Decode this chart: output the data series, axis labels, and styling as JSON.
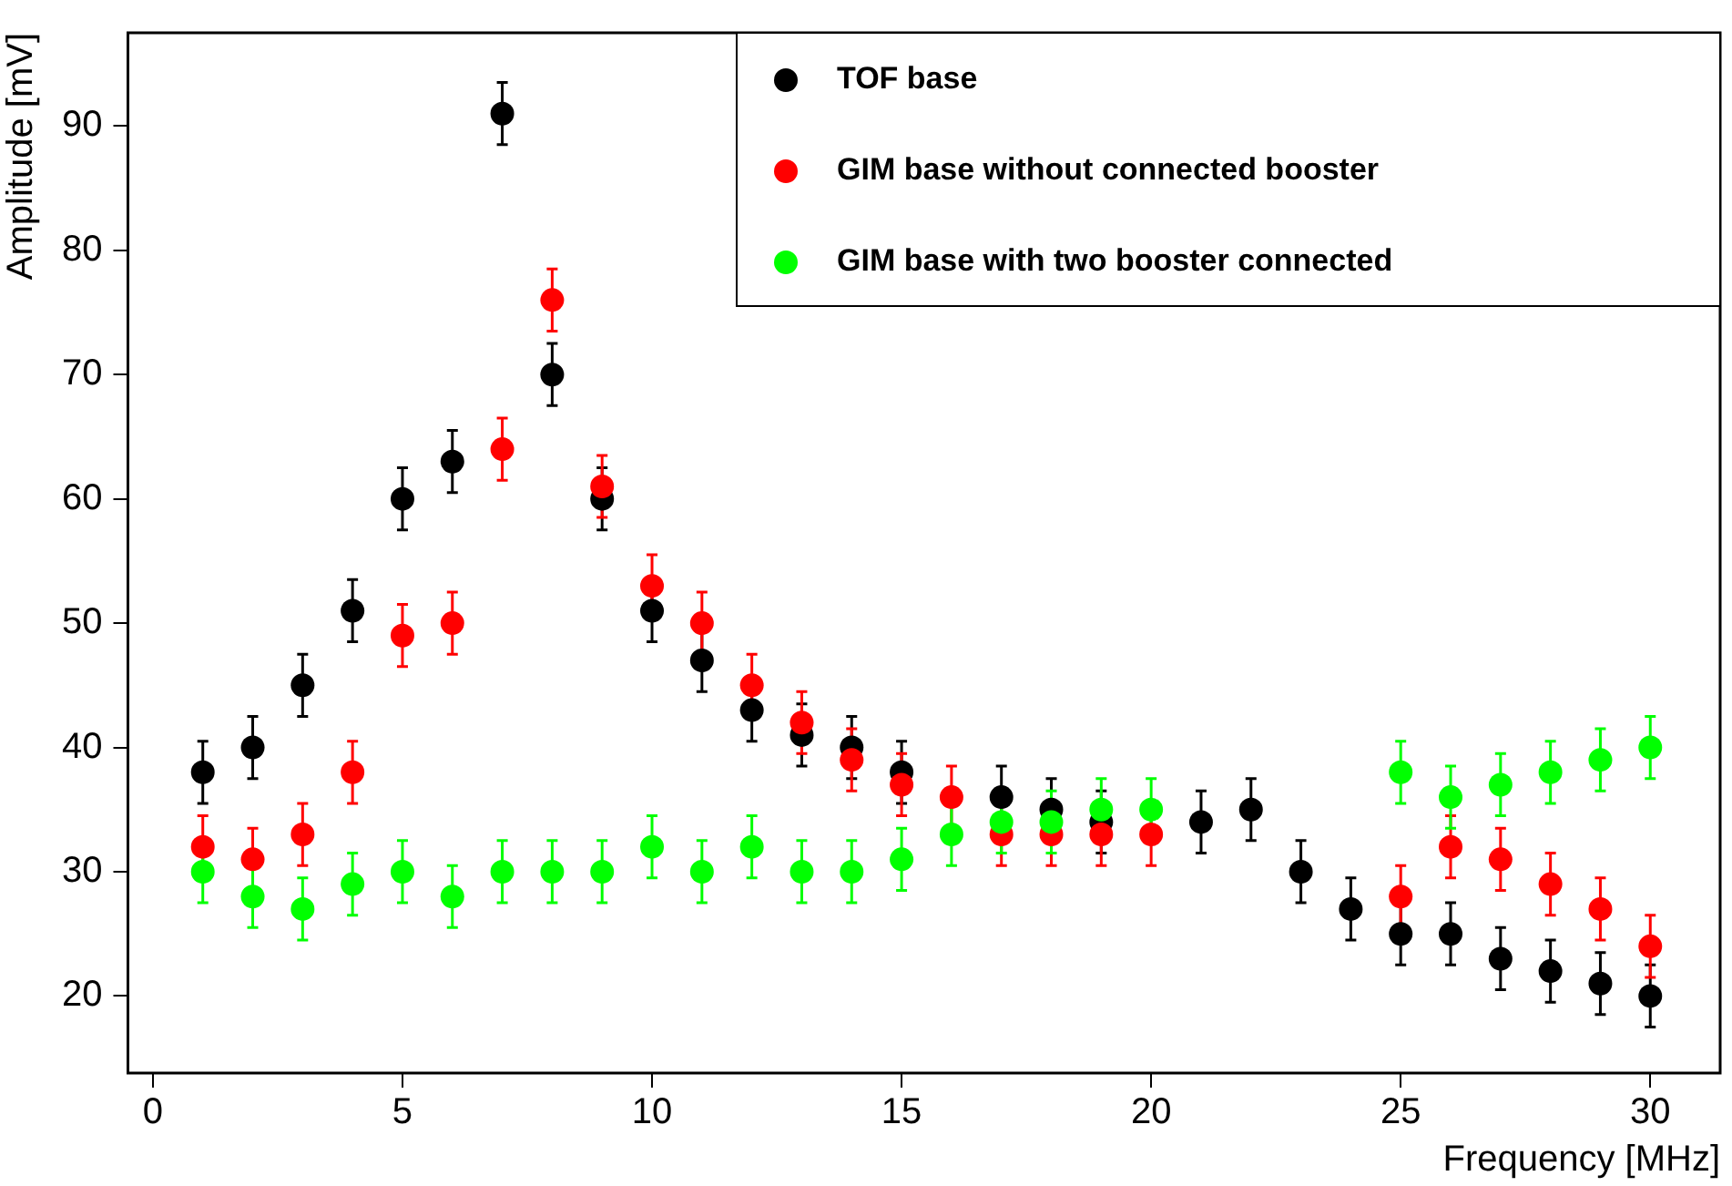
{
  "chart_data": {
    "type": "scatter",
    "xlabel": "Frequency [MHz]",
    "ylabel": "Amplitude [mV]",
    "x": [
      1,
      2,
      3,
      4,
      5,
      6,
      7,
      8,
      9,
      10,
      11,
      12,
      13,
      14,
      15,
      16,
      17,
      18,
      19,
      20,
      21,
      22,
      23,
      24,
      25,
      26,
      27,
      28,
      29,
      30
    ],
    "series": [
      {
        "name": "TOF base",
        "color": "#000000",
        "values": [
          38,
          40,
          45,
          51,
          60,
          63,
          91,
          70,
          60,
          51,
          47,
          43,
          41,
          40,
          38,
          null,
          36,
          35,
          34,
          null,
          34,
          35,
          30,
          27,
          25,
          25,
          23,
          22,
          21,
          20
        ],
        "errors": [
          2.5,
          2.5,
          2.5,
          2.5,
          2.5,
          2.5,
          2.5,
          2.5,
          2.5,
          2.5,
          2.5,
          2.5,
          2.5,
          2.5,
          2.5,
          null,
          2.5,
          2.5,
          2.5,
          null,
          2.5,
          2.5,
          2.5,
          2.5,
          2.5,
          2.5,
          2.5,
          2.5,
          2.5,
          2.5
        ]
      },
      {
        "name": "GIM base without connected booster",
        "color": "#ff0000",
        "values": [
          32,
          31,
          33,
          38,
          49,
          50,
          64,
          76,
          61,
          53,
          50,
          45,
          42,
          39,
          37,
          36,
          33,
          33,
          33,
          33,
          null,
          null,
          null,
          null,
          28,
          32,
          31,
          29,
          27,
          24
        ],
        "errors": [
          2.5,
          2.5,
          2.5,
          2.5,
          2.5,
          2.5,
          2.5,
          2.5,
          2.5,
          2.5,
          2.5,
          2.5,
          2.5,
          2.5,
          2.5,
          2.5,
          2.5,
          2.5,
          2.5,
          2.5,
          null,
          null,
          null,
          null,
          2.5,
          2.5,
          2.5,
          2.5,
          2.5,
          2.5
        ]
      },
      {
        "name": "GIM base with two booster connected",
        "color": "#00ff00",
        "values": [
          30,
          28,
          27,
          29,
          30,
          28,
          30,
          30,
          30,
          32,
          30,
          32,
          30,
          30,
          31,
          33,
          34,
          34,
          35,
          35,
          null,
          null,
          null,
          null,
          38,
          36,
          37,
          38,
          39,
          40
        ],
        "errors": [
          2.5,
          2.5,
          2.5,
          2.5,
          2.5,
          2.5,
          2.5,
          2.5,
          2.5,
          2.5,
          2.5,
          2.5,
          2.5,
          2.5,
          2.5,
          2.5,
          2.5,
          2.5,
          2.5,
          2.5,
          null,
          null,
          null,
          null,
          2.5,
          2.5,
          2.5,
          2.5,
          2.5,
          2.5
        ]
      }
    ],
    "xlim": [
      -0.5,
      31.4
    ],
    "xticks": [
      0,
      5,
      10,
      15,
      20,
      25,
      30
    ],
    "ylim": [
      13.8,
      97.5
    ],
    "yticks": [
      20,
      30,
      40,
      50,
      60,
      70,
      80,
      90
    ],
    "grid": false,
    "legend": "top right",
    "marker": "circle"
  }
}
